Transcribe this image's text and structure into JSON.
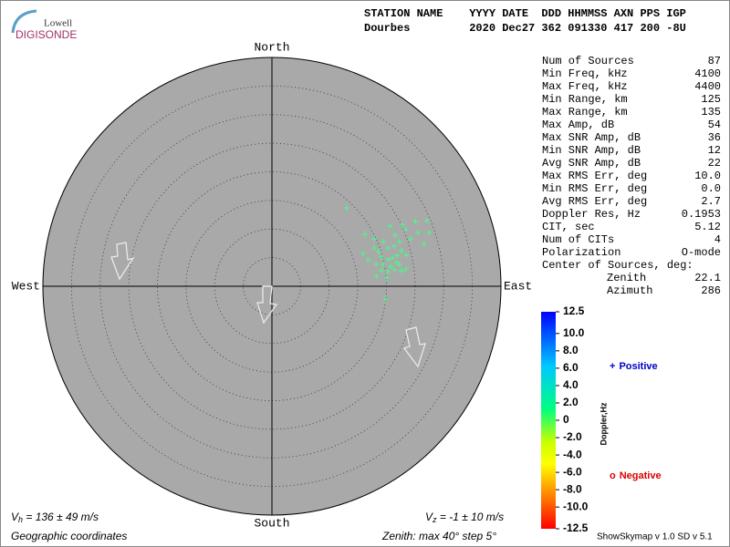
{
  "logo": {
    "top": "Lowell",
    "bottom": "DIGISONDE"
  },
  "header": {
    "labels": "STATION NAME    YYYY DATE  DDD HHMMSS AXN PPS IGP",
    "values": "Dourbes         2020 Dec27 362 091330 417 200 -8U"
  },
  "chart_data": {
    "type": "skymap",
    "directions": {
      "north": "North",
      "south": "South",
      "east": "East",
      "west": "West"
    },
    "zenith_max": 40,
    "zenith_step": 5,
    "color": "#44ff88",
    "sources": {
      "zenith": [
        18.9,
        18.6,
        23.2,
        25.2,
        27.5,
        29.4,
        25.4,
        27.2,
        29.0,
        23.3,
        19.7,
        21.0,
        23.6,
        25.6,
        27.6,
        16.9,
        19.1,
        19.6,
        21.3,
        22.5,
        23.5,
        24.1,
        17.4,
        19.8,
        20.8,
        21.6,
        22.2,
        18.6,
        19.8,
        21.0,
        22.6,
        23.6,
        19.3,
        20.4,
        21.6,
        22.8,
        18.3,
        20.1,
        19.9,
        22.5
      ],
      "azimuth": [
        43.6,
        60.8,
        63.1,
        64.9,
        65.7,
        67.0,
        67.1,
        69.8,
        71.1,
        67.5,
        65.1,
        68.1,
        70.7,
        71.1,
        74.6,
        70.2,
        69.4,
        72.0,
        71.7,
        71.8,
        74.6,
        77.0,
        74.6,
        75.1,
        77.1,
        76.8,
        79.3,
        78.1,
        78.9,
        80.4,
        80.3,
        82.6,
        81.9,
        82.8,
        82.3,
        83.2,
        84.5,
        85.9,
        96.4,
        76.1
      ]
    },
    "vh": {
      "symbol": "V",
      "subscript": "h",
      "text": " = 136 ± 49 m/s"
    },
    "vz": {
      "symbol": "V",
      "subscript": "z",
      "text": " = -1 ± 10 m/s"
    },
    "coordinates": "Geographic coordinates",
    "zenith_note": "Zenith: max 40°  step 5°",
    "colorbar": {
      "title": "Doppler,Hz",
      "clim": [
        -12.5,
        12.5
      ],
      "ticks": [
        12.5,
        {
          "value": 10,
          "label": "10.0"
        },
        {
          "value": 8,
          "label": "8.0"
        },
        {
          "value": 6,
          "label": "6.0"
        },
        {
          "value": 4,
          "label": "4.0"
        },
        {
          "value": 2,
          "label": "2.0"
        },
        0,
        {
          "value": -2,
          "label": "-2.0"
        },
        {
          "value": -4,
          "label": "-4.0"
        },
        {
          "value": -6,
          "label": "-6.0"
        },
        {
          "value": -8,
          "label": "-8.0"
        },
        {
          "value": -10,
          "label": "-10.0"
        },
        -12.5
      ]
    },
    "legend": {
      "positive": {
        "marker": "+",
        "label": "Positive",
        "color": "#0000cc"
      },
      "negative": {
        "marker": "o",
        "label": "Negative",
        "color": "#dd0000"
      }
    }
  },
  "stats": {
    "rows": [
      [
        "Num of Sources",
        "87"
      ],
      [
        "Min Freq, kHz",
        "4100"
      ],
      [
        "Max Freq, kHz",
        "4400"
      ],
      [
        "Min Range, km",
        "125"
      ],
      [
        "Max Range, km",
        "135"
      ],
      [
        "Max Amp, dB",
        "54"
      ],
      [
        "Max SNR Amp, dB",
        "36"
      ],
      [
        "Min SNR Amp, dB",
        "12"
      ],
      [
        "Avg SNR Amp, dB",
        "22"
      ],
      [
        "Max RMS Err, deg",
        "10.0"
      ],
      [
        "Min RMS Err, deg",
        "0.0"
      ],
      [
        "Avg RMS Err, deg",
        "2.7"
      ],
      [
        "Doppler Res, Hz",
        "0.1953"
      ],
      [
        "CIT, sec",
        "5.12"
      ],
      [
        "Num of CITs",
        "4"
      ],
      [
        "Polarization",
        "O-mode"
      ]
    ],
    "center_title": "Center of Sources, deg:",
    "center_rows": [
      [
        "Zenith",
        "22.1"
      ],
      [
        "Azimuth",
        "286"
      ]
    ]
  },
  "footer": "ShowSkymap v 1.0  SD v 5.1"
}
